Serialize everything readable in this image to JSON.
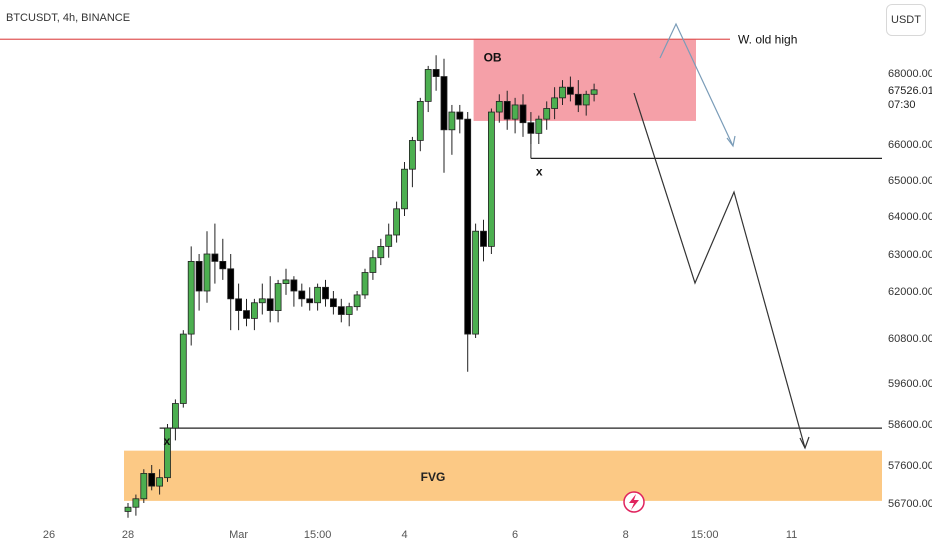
{
  "header": {
    "title": "BTCUSDT, 4h, BINANCE"
  },
  "currency_button": {
    "label": "USDT"
  },
  "last_price": {
    "value": "67526.01",
    "countdown": "07:30"
  },
  "chart_data": {
    "type": "candlestick",
    "ylim": [
      56400,
      69800
    ],
    "y_ticks": [
      {
        "value": 68000,
        "label": "68000.00"
      },
      {
        "value": 66000,
        "label": "66000.00"
      },
      {
        "value": 65000,
        "label": "65000.00"
      },
      {
        "value": 64000,
        "label": "64000.00"
      },
      {
        "value": 63000,
        "label": "63000.00"
      },
      {
        "value": 62000,
        "label": "62000.00"
      },
      {
        "value": 60800,
        "label": "60800.00"
      },
      {
        "value": 59600,
        "label": "59600.00"
      },
      {
        "value": 58600,
        "label": "58600.00"
      },
      {
        "value": 57600,
        "label": "57600.00"
      },
      {
        "value": 56700,
        "label": "56700.00"
      }
    ],
    "x_ticks": [
      {
        "bar": -10,
        "label": "26"
      },
      {
        "bar": 0,
        "label": "28"
      },
      {
        "bar": 14,
        "label": "Mar"
      },
      {
        "bar": 24,
        "label": "15:00"
      },
      {
        "bar": 35,
        "label": "4"
      },
      {
        "bar": 49,
        "label": "6"
      },
      {
        "bar": 63,
        "label": "8"
      },
      {
        "bar": 73,
        "label": "15:00"
      },
      {
        "bar": 84,
        "label": "11"
      }
    ],
    "candles": [
      [
        56500,
        56700,
        56350,
        56600
      ],
      [
        56600,
        56900,
        56400,
        56800
      ],
      [
        56800,
        57500,
        56700,
        57400
      ],
      [
        57400,
        57600,
        57000,
        57100
      ],
      [
        57100,
        57500,
        56900,
        57300
      ],
      [
        57300,
        58600,
        57200,
        58500
      ],
      [
        58500,
        59200,
        58200,
        59100
      ],
      [
        59100,
        61000,
        59000,
        60900
      ],
      [
        60900,
        63200,
        60600,
        62800
      ],
      [
        62800,
        63000,
        61500,
        62000
      ],
      [
        62000,
        63600,
        61700,
        63000
      ],
      [
        63000,
        63800,
        62200,
        62800
      ],
      [
        62800,
        63400,
        62300,
        62600
      ],
      [
        62600,
        63000,
        61000,
        61800
      ],
      [
        61800,
        62200,
        61000,
        61500
      ],
      [
        61500,
        61800,
        61100,
        61300
      ],
      [
        61300,
        61800,
        61000,
        61700
      ],
      [
        61700,
        62200,
        61400,
        61800
      ],
      [
        61800,
        62400,
        61200,
        61500
      ],
      [
        61500,
        62300,
        61200,
        62200
      ],
      [
        62200,
        62600,
        61900,
        62300
      ],
      [
        62300,
        62400,
        61600,
        62000
      ],
      [
        62000,
        62200,
        61600,
        61800
      ],
      [
        61800,
        62100,
        61500,
        61700
      ],
      [
        61700,
        62200,
        61500,
        62100
      ],
      [
        62100,
        62300,
        61600,
        61800
      ],
      [
        61800,
        62000,
        61400,
        61600
      ],
      [
        61600,
        61800,
        61200,
        61400
      ],
      [
        61400,
        61700,
        61100,
        61600
      ],
      [
        61600,
        62000,
        61500,
        61900
      ],
      [
        61900,
        62600,
        61800,
        62500
      ],
      [
        62500,
        63100,
        62300,
        62900
      ],
      [
        62900,
        63400,
        62700,
        63200
      ],
      [
        63200,
        63800,
        62900,
        63500
      ],
      [
        63500,
        64400,
        63300,
        64200
      ],
      [
        64200,
        65500,
        64000,
        65300
      ],
      [
        65300,
        66200,
        64800,
        66100
      ],
      [
        66100,
        67300,
        65800,
        67200
      ],
      [
        67200,
        68200,
        66900,
        68100
      ],
      [
        68100,
        68500,
        67500,
        67900
      ],
      [
        67900,
        68400,
        65200,
        66400
      ],
      [
        66400,
        67100,
        65700,
        66900
      ],
      [
        66900,
        67100,
        66300,
        66700
      ],
      [
        66700,
        66900,
        59900,
        60900
      ],
      [
        60900,
        63800,
        60800,
        63600
      ],
      [
        63600,
        63900,
        62800,
        63200
      ],
      [
        63200,
        67000,
        63000,
        66900
      ],
      [
        66900,
        67400,
        66600,
        67200
      ],
      [
        67200,
        67500,
        66400,
        66700
      ],
      [
        66700,
        67300,
        66300,
        67100
      ],
      [
        67100,
        67400,
        66200,
        66600
      ],
      [
        66600,
        66900,
        66000,
        66300
      ],
      [
        66300,
        66800,
        66000,
        66700
      ],
      [
        66700,
        67200,
        66400,
        67000
      ],
      [
        67000,
        67600,
        66700,
        67300
      ],
      [
        67300,
        67800,
        67100,
        67600
      ],
      [
        67600,
        67900,
        67200,
        67400
      ],
      [
        67400,
        67800,
        66900,
        67100
      ],
      [
        67100,
        67500,
        66800,
        67400
      ],
      [
        67400,
        67700,
        67200,
        67526.01
      ]
    ],
    "annotations": {
      "old_high": {
        "price": 68950,
        "label": "W. old high"
      },
      "order_block": {
        "label": "OB",
        "price_top": 68950,
        "price_bottom": 66650
      },
      "fvg": {
        "label": "FVG",
        "price_top": 57950,
        "price_bottom": 56750
      },
      "level_high": {
        "price": 65600,
        "marker": "x"
      },
      "level_low": {
        "price": 58500,
        "marker": "x"
      }
    },
    "grid": false,
    "colors": {
      "bull": "#4caf50",
      "bear": "#000000",
      "ob": "#f5a0a8",
      "fvg": "#fcc985",
      "old_high_line": "#e05a5a",
      "arrow_up": "#7a9cb8",
      "projection": "#333333",
      "badge": "#e0245e"
    }
  }
}
